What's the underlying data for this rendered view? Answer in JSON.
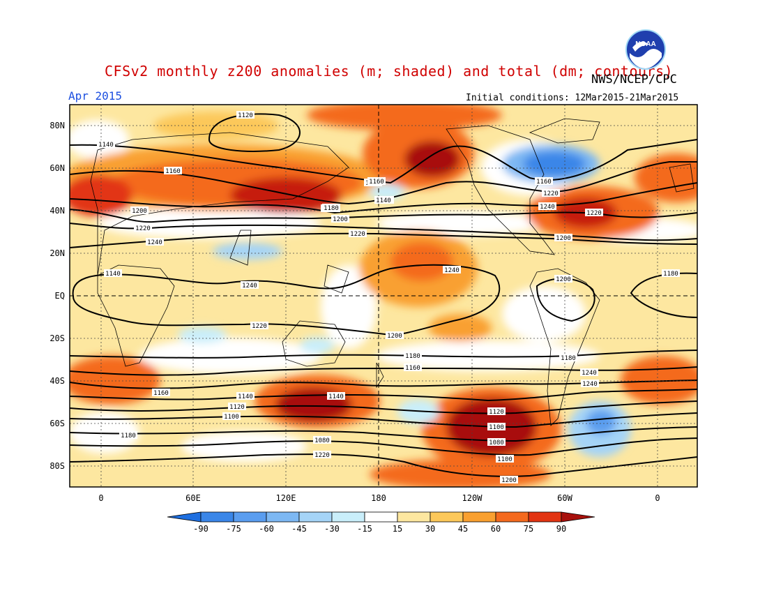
{
  "header": {
    "title": "CFSv2 monthly z200 anomalies (m; shaded) and total (dm; contours)",
    "agency": "NWS/NCEP/CPC",
    "month": "Apr 2015",
    "initial_conditions": "Initial conditions: 12Mar2015-21Mar2015",
    "logo_text": "NOAA"
  },
  "map": {
    "lat_labels": [
      "80N",
      "60N",
      "40N",
      "20N",
      "EQ",
      "20S",
      "40S",
      "60S",
      "80S"
    ],
    "lon_labels": [
      "0",
      "60E",
      "120E",
      "180",
      "120W",
      "60W",
      "0"
    ],
    "contour_labels": [
      "1120",
      "1140",
      "1160",
      "1180",
      "1200",
      "1220",
      "1240",
      "1140",
      "1160",
      "1180",
      "1200",
      "1220",
      "1240",
      "1160",
      "1140",
      "1180",
      "1200",
      "1220",
      "1240",
      "1240",
      "1220",
      "1200",
      "1180",
      "1160",
      "1140",
      "1120",
      "1100",
      "1180",
      "1160",
      "1140",
      "1120",
      "1100",
      "1080",
      "1100",
      "1080",
      "1220",
      "1200",
      "1180",
      "1240",
      "1240",
      "1200",
      "1180",
      "1220",
      "1240",
      "1200",
      "1160",
      "1220"
    ]
  },
  "colorbar": {
    "ticks": [
      "-90",
      "-75",
      "-60",
      "-45",
      "-30",
      "-15",
      "15",
      "30",
      "45",
      "60",
      "75",
      "90"
    ],
    "colors": [
      "#1e6fe0",
      "#3a86e8",
      "#5a9def",
      "#7db8f3",
      "#a5d4f7",
      "#c9eefa",
      "#ffffff",
      "#fde7a0",
      "#fcc85a",
      "#f9a030",
      "#f46a1e",
      "#e23412",
      "#a8100c"
    ]
  }
}
